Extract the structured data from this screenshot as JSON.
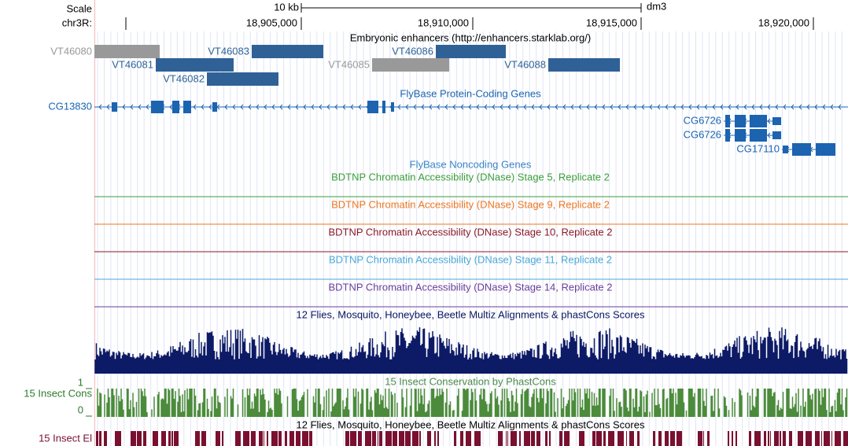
{
  "ruler": {
    "scale_label": "Scale",
    "scale_size": "10 kb",
    "assembly": "dm3",
    "chrom": "chr3R:",
    "positions": [
      "18,905,000",
      "18,910,000",
      "18,915,000",
      "18,920,000"
    ]
  },
  "enhancers": {
    "title": "Embryonic enhancers (http://enhancers.starklab.org/)",
    "items": [
      "VT46080",
      "VT46081",
      "VT46082",
      "VT46083",
      "VT46085",
      "VT46086",
      "VT46088"
    ]
  },
  "genes": {
    "title": "FlyBase Protein-Coding Genes",
    "items": [
      "CG13830",
      "CG6726",
      "CG6726",
      "CG17110"
    ]
  },
  "noncoding": {
    "title": "FlyBase Noncoding Genes"
  },
  "dnase": {
    "titles": [
      "BDTNP Chromatin Accessibility (DNase) Stage 5, Replicate 2",
      "BDTNP Chromatin Accessibility (DNase) Stage 9, Replicate 2",
      "BDTNP Chromatin Accessibility (DNase) Stage 10, Replicate 2",
      "BDTNP Chromatin Accessibility (DNase) Stage 11, Replicate 2",
      "BDTNP Chromatin Accessibility (DNase) Stage 14, Replicate 2"
    ]
  },
  "multiz": {
    "title": "12 Flies, Mosquito, Honeybee, Beetle Multiz Alignments & phastCons Scores"
  },
  "cons": {
    "title": "15 Insect Conservation by PhastCons",
    "label": "15 Insect Cons",
    "max": "1",
    "min": "0"
  },
  "elements": {
    "title": "12 Flies, Mosquito, Honeybee, Beetle Multiz Alignments & phastCons Scores",
    "label": "15 Insect El"
  }
}
